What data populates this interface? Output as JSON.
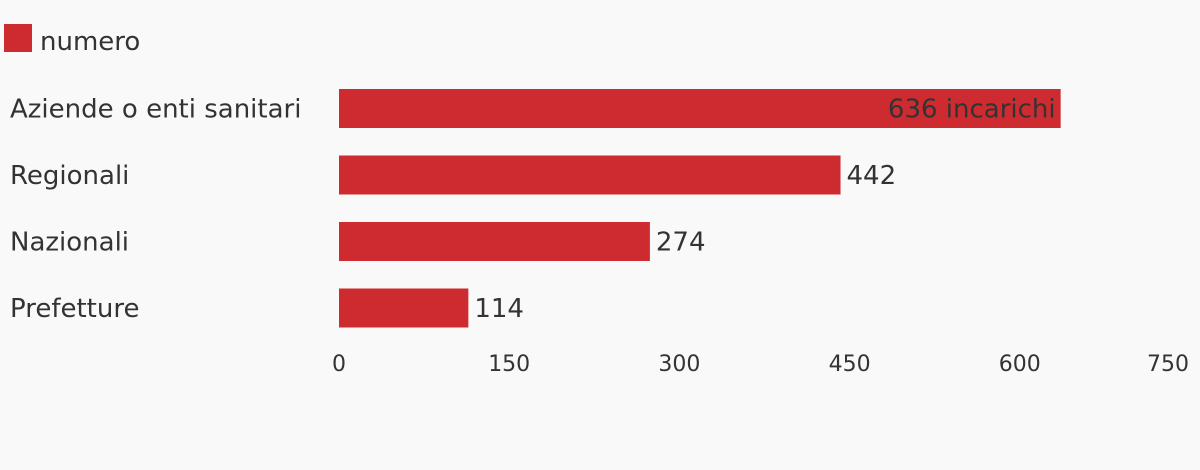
{
  "chart_data": {
    "type": "bar",
    "orientation": "horizontal",
    "categories": [
      "Aziende o enti sanitari",
      "Regionali",
      "Nazionali",
      "Prefetture"
    ],
    "series": [
      {
        "name": "numero",
        "values": [
          636,
          442,
          274,
          114
        ],
        "color": "#cd2b30"
      }
    ],
    "value_labels": [
      "636 incarichi",
      "442",
      "274",
      "114"
    ],
    "xlim": [
      0,
      750
    ],
    "xticks": [
      0,
      150,
      300,
      450,
      600,
      750
    ],
    "grid": false,
    "legend": "top-left"
  }
}
